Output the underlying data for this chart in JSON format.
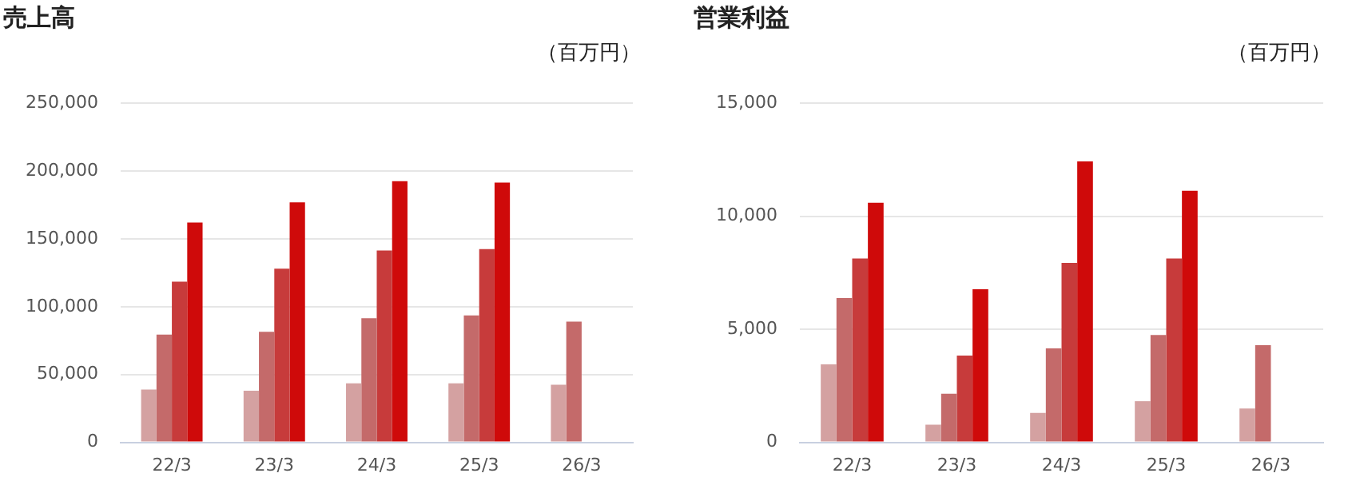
{
  "chart_data": [
    {
      "type": "bar",
      "title": "売上高",
      "subtitle": "（百万円）",
      "categories": [
        "22/3",
        "23/3",
        "24/3",
        "25/3",
        "26/3"
      ],
      "series": [
        {
          "color": "#d4a1a1",
          "values": [
            39000,
            38000,
            43500,
            43500,
            42500
          ]
        },
        {
          "color": "#c46a6a",
          "values": [
            79500,
            81500,
            91500,
            93500,
            89000
          ]
        },
        {
          "color": "#c73b3b",
          "values": [
            118500,
            128000,
            141500,
            142500,
            null
          ]
        },
        {
          "color": "#cf0a0a",
          "values": [
            162000,
            177000,
            192500,
            191500,
            null
          ]
        }
      ],
      "ylim": [
        0,
        250000
      ],
      "yticks": [
        0,
        {
          "value": 50000,
          "label": "50,000"
        },
        {
          "value": 100000,
          "label": "100,000"
        },
        {
          "value": 150000,
          "label": "150,000"
        },
        {
          "value": 200000,
          "label": "200,000"
        },
        {
          "value": 250000,
          "label": "250,000"
        }
      ],
      "grid": "y",
      "legend": false
    },
    {
      "type": "bar",
      "title": "営業利益",
      "subtitle": "（百万円）",
      "categories": [
        "22/3",
        "23/3",
        "24/3",
        "25/3",
        "26/3"
      ],
      "series": [
        {
          "color": "#d4a1a1",
          "values": [
            3450,
            780,
            1300,
            1820,
            1500
          ]
        },
        {
          "color": "#c46a6a",
          "values": [
            6380,
            2150,
            4160,
            4750,
            4300
          ]
        },
        {
          "color": "#c73b3b",
          "values": [
            8130,
            3840,
            7940,
            8130,
            null
          ]
        },
        {
          "color": "#cf0a0a",
          "values": [
            10600,
            6770,
            12430,
            11130,
            null
          ]
        }
      ],
      "ylim": [
        0,
        15000
      ],
      "yticks": [
        0,
        {
          "value": 5000,
          "label": "5,000"
        },
        {
          "value": 10000,
          "label": "10,000"
        },
        {
          "value": 15000,
          "label": "15,000"
        }
      ],
      "grid": "y",
      "legend": false
    }
  ]
}
